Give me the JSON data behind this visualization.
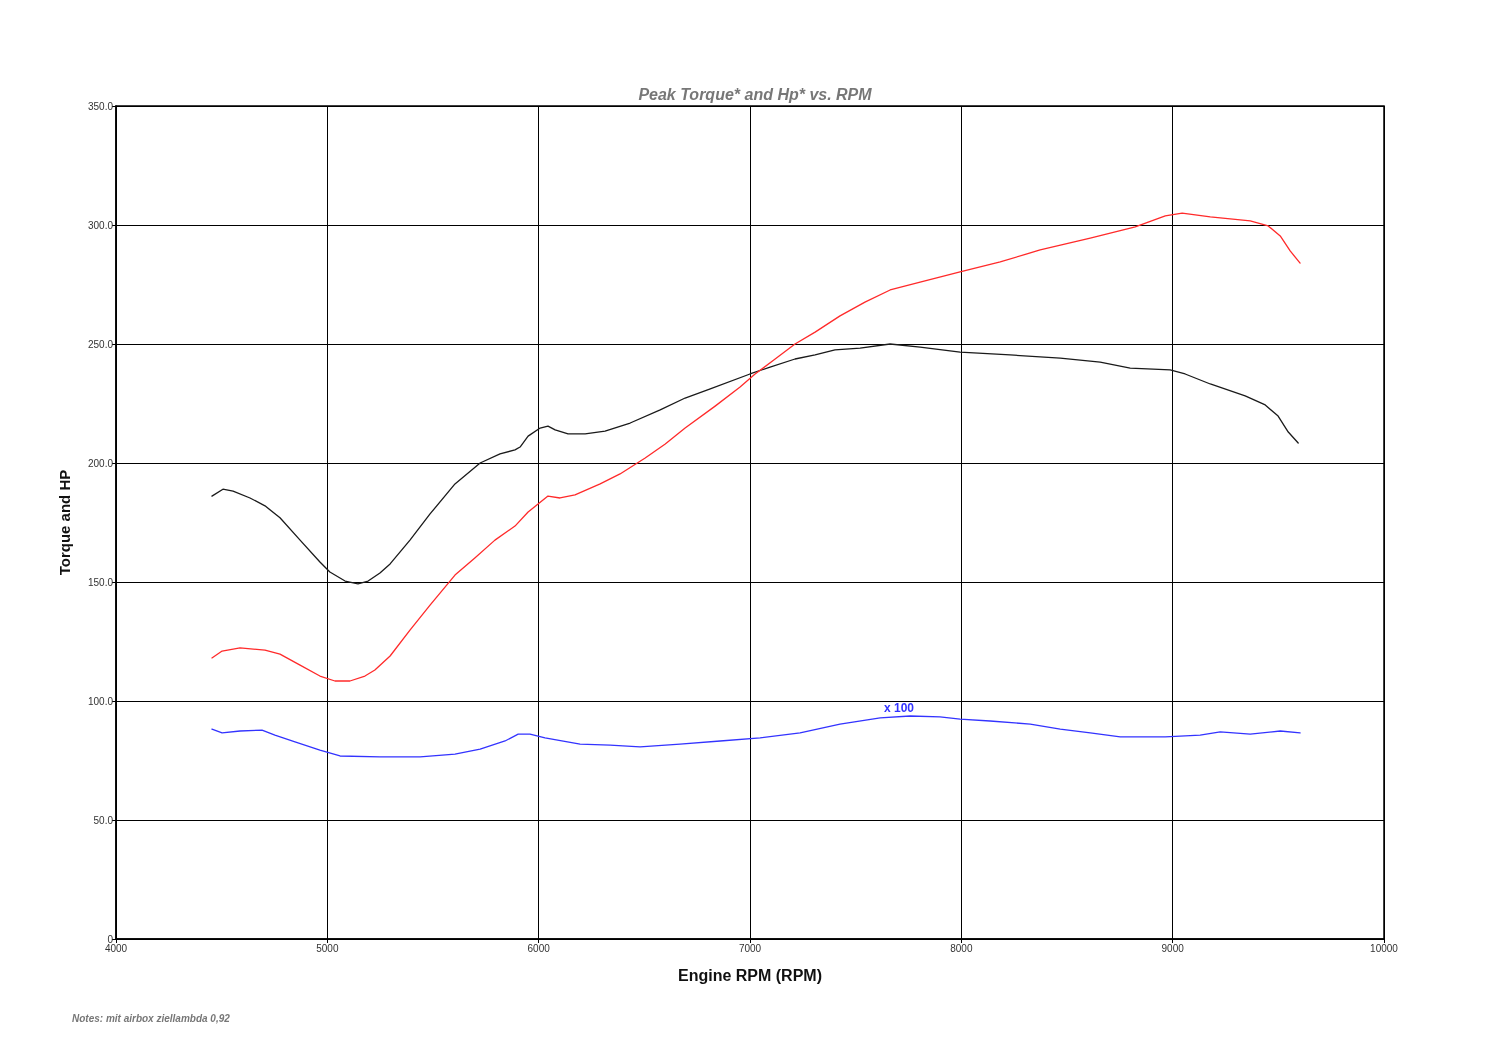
{
  "chart_data": {
    "type": "line",
    "title": "Peak Torque* and Hp* vs. RPM",
    "xlabel": "Engine RPM (RPM)",
    "ylabel": "Torque and HP",
    "xlim": [
      4000,
      10000
    ],
    "xticks": [
      4000,
      5000,
      6000,
      7000,
      8000,
      9000,
      10000
    ],
    "ylim": [
      0,
      350
    ],
    "yticks": [
      {
        "value": 0,
        "label": "0"
      },
      {
        "value": 50,
        "label": "50.0"
      },
      {
        "value": 100,
        "label": "100.0"
      },
      {
        "value": 150,
        "label": "150.0"
      },
      {
        "value": 200,
        "label": "200.0"
      },
      {
        "value": 250,
        "label": "250.0"
      },
      {
        "value": 300,
        "label": "300.0"
      },
      {
        "value": 350,
        "label": "350.0"
      }
    ],
    "grid": true,
    "marker": "none",
    "line_style": "solid",
    "annotations": [
      "x 100",
      "Notes: mit airbox ziellambda 0,92"
    ],
    "series": [
      {
        "color": "#1a1a1a",
        "x": [
          4454,
          4506,
          4554,
          4634,
          4705,
          4776,
          4871,
          4965,
          5012,
          5084,
          5145,
          5193,
          5249,
          5297,
          5391,
          5486,
          5604,
          5723,
          5817,
          5888,
          5912,
          5950,
          6007,
          6044,
          6078,
          6139,
          6220,
          6314,
          6433,
          6575,
          6693,
          6812,
          7000,
          7095,
          7213,
          7308,
          7402,
          7521,
          7663,
          7805,
          7994,
          8231,
          8468,
          8657,
          8799,
          8988,
          9059,
          9178,
          9343,
          9438,
          9499,
          9547,
          9594
        ],
        "values": [
          186.1,
          189,
          188.2,
          185.3,
          182,
          177,
          167.6,
          158.4,
          154.2,
          150.4,
          149.2,
          150.4,
          153.8,
          157.6,
          167.6,
          178.6,
          191.2,
          200,
          203.8,
          205.5,
          206.7,
          211.3,
          214.7,
          215.5,
          213.9,
          212.2,
          212.2,
          213.4,
          216.8,
          222.3,
          227.3,
          231.1,
          237.4,
          240.3,
          243.7,
          245.4,
          247.5,
          248.3,
          250,
          248.7,
          246.6,
          245.4,
          244.1,
          242.4,
          239.9,
          239.1,
          237.4,
          233.2,
          228.2,
          224.4,
          219.7,
          213,
          208.4
        ]
      },
      {
        "color": "#ff2a2a",
        "x": [
          4454,
          4502,
          4587,
          4705,
          4776,
          4871,
          4965,
          5036,
          5107,
          5178,
          5225,
          5297,
          5391,
          5486,
          5604,
          5698,
          5793,
          5888,
          5950,
          6044,
          6101,
          6172,
          6291,
          6385,
          6504,
          6599,
          6693,
          6835,
          6953,
          7024,
          7119,
          7213,
          7308,
          7426,
          7544,
          7663,
          7805,
          7994,
          8184,
          8373,
          8610,
          8823,
          8965,
          9045,
          9178,
          9367,
          9452,
          9509,
          9556,
          9603
        ],
        "values": [
          118.1,
          121,
          122.3,
          121.4,
          119.7,
          115.1,
          110.5,
          108.4,
          108.4,
          110.5,
          113,
          118.9,
          129.8,
          140.3,
          152.9,
          160.1,
          167.6,
          173.5,
          179.4,
          186.1,
          185.3,
          186.6,
          191.2,
          195.4,
          202.1,
          208,
          214.7,
          223.9,
          231.9,
          237.4,
          243.7,
          250,
          255,
          261.8,
          267.6,
          272.7,
          276,
          280.3,
          284.5,
          289.5,
          294.5,
          299.2,
          303.8,
          305,
          303.4,
          301.7,
          299.6,
          295.4,
          289.1,
          284
        ]
      },
      {
        "color": "#3333ff",
        "x": [
          4454,
          4502,
          4587,
          4691,
          4752,
          4847,
          4965,
          5060,
          5249,
          5439,
          5604,
          5723,
          5841,
          5903,
          5959,
          6030,
          6196,
          6338,
          6480,
          6669,
          6859,
          7048,
          7237,
          7426,
          7616,
          7758,
          7899,
          7994,
          8136,
          8326,
          8468,
          8610,
          8752,
          8965,
          9130,
          9225,
          9367,
          9509,
          9603
        ],
        "values": [
          88.2,
          86.6,
          87.4,
          87.8,
          85.7,
          82.8,
          79.4,
          76.9,
          76.5,
          76.5,
          77.7,
          79.8,
          83.2,
          86.1,
          86.1,
          84.5,
          81.9,
          81.5,
          80.7,
          81.9,
          83.2,
          84.5,
          86.6,
          90.3,
          92.9,
          93.7,
          93.3,
          92.4,
          91.6,
          90.3,
          88.2,
          86.6,
          84.9,
          84.9,
          85.7,
          87,
          86.1,
          87.4,
          86.6
        ]
      }
    ]
  }
}
